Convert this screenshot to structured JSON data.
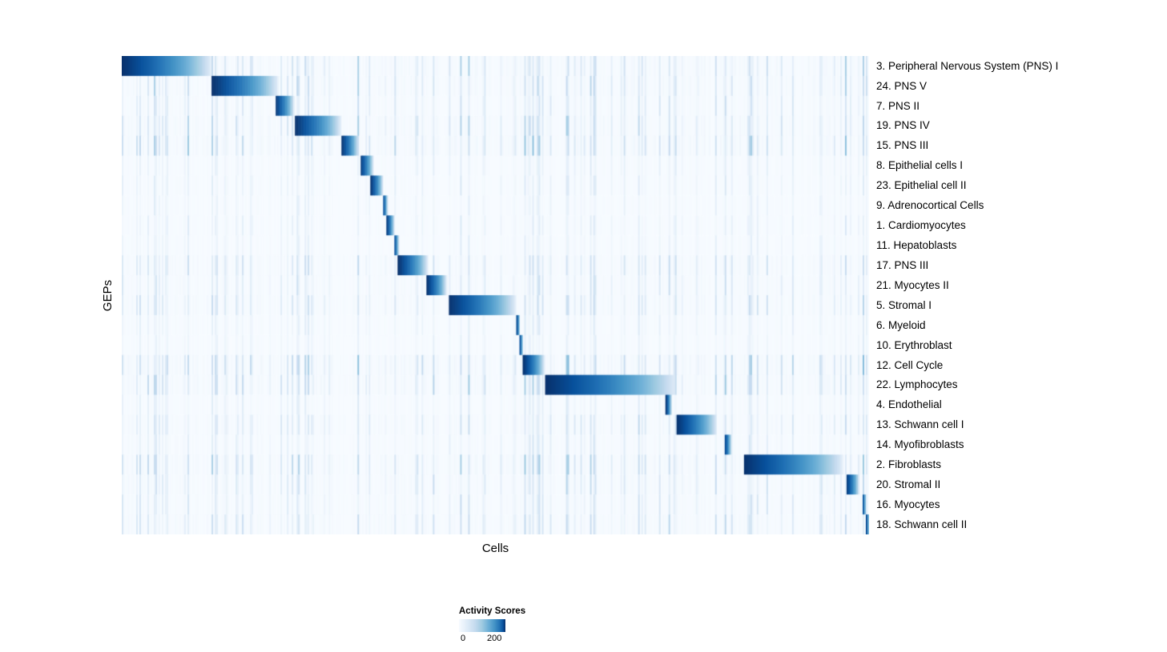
{
  "chart_data": {
    "type": "heatmap",
    "title": "",
    "xlabel": "Cells",
    "ylabel": "GEPs",
    "grid": false,
    "legend": {
      "title": "Activity Scores",
      "ticks": [
        0,
        200
      ],
      "position": "bottom"
    },
    "colormap": {
      "name": "Blues",
      "stops": [
        "#f7fbff",
        "#deebf7",
        "#c6dbef",
        "#9ecae1",
        "#6baed6",
        "#4292c6",
        "#2171b5",
        "#08519c",
        "#08306b"
      ]
    },
    "description": "Cells (columns) are ordered by their dominant GEP, producing a diagonal band of high activity blocks; each block is darkest at its left edge and fades rightward. Sparse light-blue vertical streaks show background activity.",
    "rows": [
      {
        "label": "3. Peripheral Nervous System (PNS) I",
        "block_start": 0.0,
        "block_end": 0.121,
        "peak": 1.0,
        "noise": 0.7
      },
      {
        "label": "24. PNS V",
        "block_start": 0.121,
        "block_end": 0.21,
        "peak": 1.0,
        "noise": 0.7
      },
      {
        "label": "7. PNS II",
        "block_start": 0.205,
        "block_end": 0.231,
        "peak": 1.0,
        "noise": 0.5
      },
      {
        "label": "19. PNS IV",
        "block_start": 0.232,
        "block_end": 0.294,
        "peak": 1.0,
        "noise": 0.8
      },
      {
        "label": "15. PNS III",
        "block_start": 0.294,
        "block_end": 0.317,
        "peak": 1.0,
        "noise": 0.9
      },
      {
        "label": "8. Epithelial cells I",
        "block_start": 0.319,
        "block_end": 0.337,
        "peak": 1.0,
        "noise": 0.3
      },
      {
        "label": "23. Epithelial cell II",
        "block_start": 0.333,
        "block_end": 0.35,
        "peak": 1.0,
        "noise": 0.3
      },
      {
        "label": "9. Adrenocortical Cells",
        "block_start": 0.349,
        "block_end": 0.356,
        "peak": 1.0,
        "noise": 0.25
      },
      {
        "label": "1. Cardiomyocytes",
        "block_start": 0.354,
        "block_end": 0.365,
        "peak": 1.0,
        "noise": 0.3
      },
      {
        "label": "11. Hepatoblasts",
        "block_start": 0.364,
        "block_end": 0.371,
        "peak": 1.0,
        "noise": 0.25
      },
      {
        "label": "17. PNS III",
        "block_start": 0.37,
        "block_end": 0.41,
        "peak": 1.0,
        "noise": 0.6
      },
      {
        "label": "21. Myocytes II",
        "block_start": 0.408,
        "block_end": 0.435,
        "peak": 1.0,
        "noise": 0.5
      },
      {
        "label": "5. Stromal I",
        "block_start": 0.437,
        "block_end": 0.528,
        "peak": 1.0,
        "noise": 0.6
      },
      {
        "label": "6. Myeloid",
        "block_start": 0.528,
        "block_end": 0.533,
        "peak": 1.0,
        "noise": 0.3
      },
      {
        "label": "10. Erythroblast",
        "block_start": 0.532,
        "block_end": 0.537,
        "peak": 1.0,
        "noise": 0.25
      },
      {
        "label": "12. Cell Cycle",
        "block_start": 0.537,
        "block_end": 0.566,
        "peak": 1.0,
        "noise": 0.9
      },
      {
        "label": "22. Lymphocytes",
        "block_start": 0.566,
        "block_end": 0.743,
        "peak": 1.0,
        "noise": 0.8
      },
      {
        "label": "4. Endothelial",
        "block_start": 0.728,
        "block_end": 0.736,
        "peak": 1.0,
        "noise": 0.3
      },
      {
        "label": "13. Schwann cell I",
        "block_start": 0.742,
        "block_end": 0.797,
        "peak": 1.0,
        "noise": 0.6
      },
      {
        "label": "14. Myofibroblasts",
        "block_start": 0.806,
        "block_end": 0.816,
        "peak": 1.0,
        "noise": 0.4
      },
      {
        "label": "2. Fibroblasts",
        "block_start": 0.832,
        "block_end": 0.966,
        "peak": 1.0,
        "noise": 0.8
      },
      {
        "label": "20. Stromal II",
        "block_start": 0.969,
        "block_end": 0.987,
        "peak": 1.0,
        "noise": 0.6
      },
      {
        "label": "16. Myocytes",
        "block_start": 0.991,
        "block_end": 0.996,
        "peak": 1.0,
        "noise": 0.5
      },
      {
        "label": "18. Schwann cell II",
        "block_start": 0.996,
        "block_end": 1.0,
        "peak": 1.0,
        "noise": 0.6
      }
    ]
  }
}
